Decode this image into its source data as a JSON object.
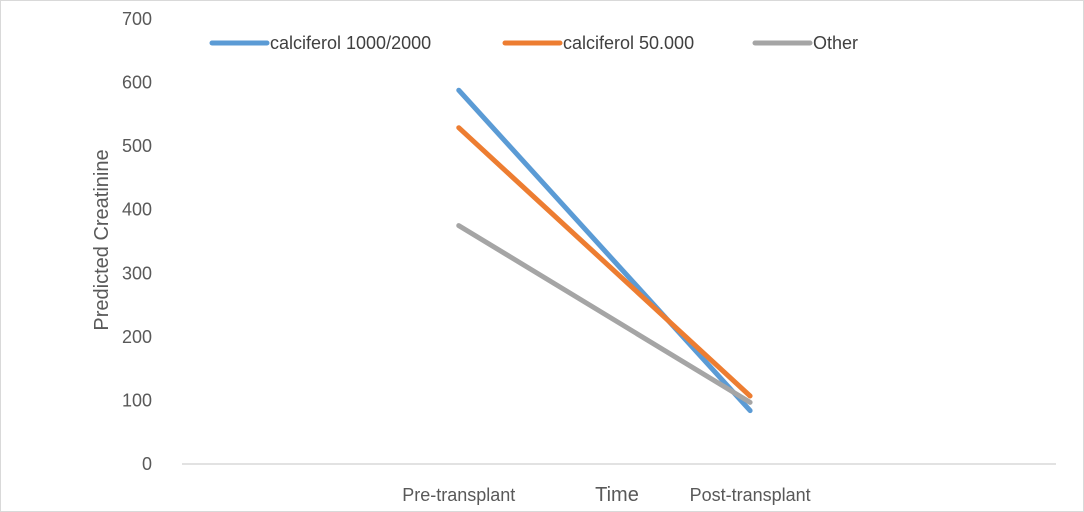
{
  "chart_data": {
    "type": "line",
    "title": "",
    "xlabel": "Time",
    "ylabel": "Predicted Creatinine",
    "categories": [
      "Pre-transplant",
      "Post-transplant"
    ],
    "ylim": [
      0,
      700
    ],
    "yticks": [
      "0",
      "100",
      "200",
      "300",
      "400",
      "500",
      "600",
      "700"
    ],
    "grid": false,
    "legend_position": "top",
    "series": [
      {
        "name": "calciferol 1000/2000",
        "values": [
          588,
          84
        ],
        "color": "#5B9BD5"
      },
      {
        "name": "calciferol 50.000",
        "values": [
          529,
          107
        ],
        "color": "#ED7D31"
      },
      {
        "name": "Other",
        "values": [
          375,
          97
        ],
        "color": "#A5A5A5"
      }
    ]
  }
}
